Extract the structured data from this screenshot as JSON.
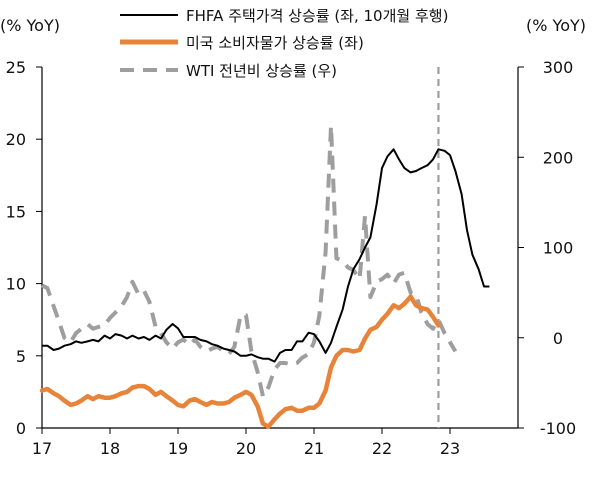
{
  "chart_data": {
    "type": "line",
    "left_axis_unit": "(% YoY)",
    "right_axis_unit": "(% YoY)",
    "x_tick_labels": [
      "17",
      "18",
      "19",
      "20",
      "21",
      "22",
      "23"
    ],
    "x_ticks": [
      2017,
      2018,
      2019,
      2020,
      2021,
      2022,
      2023
    ],
    "xlim": [
      2017,
      2024
    ],
    "y_left": {
      "ylim": [
        0,
        25
      ],
      "ticks": [
        0,
        5,
        10,
        15,
        20,
        25
      ],
      "tick_labels": [
        "0",
        "5",
        "10",
        "15",
        "20",
        "25"
      ]
    },
    "y_right": {
      "ylim": [
        -100,
        300
      ],
      "ticks": [
        -100,
        0,
        100,
        200,
        300
      ],
      "tick_labels": [
        "-100",
        "0",
        "100",
        "200",
        "300"
      ]
    },
    "vline_x": 2022.83,
    "grid": false,
    "legend_position": "top",
    "colors": {
      "fhfa": "#000000",
      "cpi": "#e8833a",
      "wti": "#9e9e9e",
      "vline": "#9e9e9e"
    },
    "series": [
      {
        "name": "FHFA 주택가격 상승률 (좌, 10개월 후행)",
        "axis": "left",
        "style": "solid",
        "points": [
          [
            2017.0,
            5.7
          ],
          [
            2017.08,
            5.7
          ],
          [
            2017.17,
            5.4
          ],
          [
            2017.25,
            5.5
          ],
          [
            2017.33,
            5.7
          ],
          [
            2017.42,
            5.8
          ],
          [
            2017.5,
            6.0
          ],
          [
            2017.58,
            5.9
          ],
          [
            2017.67,
            6.0
          ],
          [
            2017.75,
            6.1
          ],
          [
            2017.83,
            6.0
          ],
          [
            2017.92,
            6.4
          ],
          [
            2018.0,
            6.2
          ],
          [
            2018.08,
            6.5
          ],
          [
            2018.17,
            6.4
          ],
          [
            2018.25,
            6.2
          ],
          [
            2018.33,
            6.4
          ],
          [
            2018.42,
            6.2
          ],
          [
            2018.5,
            6.3
          ],
          [
            2018.58,
            6.1
          ],
          [
            2018.67,
            6.4
          ],
          [
            2018.75,
            6.2
          ],
          [
            2018.83,
            6.8
          ],
          [
            2018.92,
            7.2
          ],
          [
            2019.0,
            6.9
          ],
          [
            2019.08,
            6.3
          ],
          [
            2019.17,
            6.3
          ],
          [
            2019.25,
            6.3
          ],
          [
            2019.33,
            6.1
          ],
          [
            2019.42,
            6.0
          ],
          [
            2019.5,
            5.8
          ],
          [
            2019.58,
            5.7
          ],
          [
            2019.67,
            5.5
          ],
          [
            2019.75,
            5.4
          ],
          [
            2019.83,
            5.3
          ],
          [
            2019.92,
            5.0
          ],
          [
            2020.0,
            5.0
          ],
          [
            2020.08,
            5.1
          ],
          [
            2020.17,
            4.9
          ],
          [
            2020.25,
            4.8
          ],
          [
            2020.33,
            4.8
          ],
          [
            2020.42,
            4.6
          ],
          [
            2020.5,
            5.2
          ],
          [
            2020.58,
            5.4
          ],
          [
            2020.67,
            5.4
          ],
          [
            2020.75,
            6.0
          ],
          [
            2020.83,
            6.0
          ],
          [
            2020.92,
            6.6
          ],
          [
            2021.0,
            6.5
          ],
          [
            2021.08,
            6.0
          ],
          [
            2021.17,
            5.2
          ],
          [
            2021.25,
            5.9
          ],
          [
            2021.33,
            7.0
          ],
          [
            2021.42,
            8.2
          ],
          [
            2021.5,
            9.8
          ],
          [
            2021.58,
            11.0
          ],
          [
            2021.67,
            11.7
          ],
          [
            2021.75,
            12.5
          ],
          [
            2021.83,
            13.2
          ],
          [
            2021.92,
            15.5
          ],
          [
            2022.0,
            18.0
          ],
          [
            2022.08,
            18.8
          ],
          [
            2022.17,
            19.3
          ],
          [
            2022.25,
            18.6
          ],
          [
            2022.33,
            18.0
          ],
          [
            2022.42,
            17.7
          ],
          [
            2022.5,
            17.8
          ],
          [
            2022.58,
            18.0
          ],
          [
            2022.67,
            18.2
          ],
          [
            2022.75,
            18.6
          ],
          [
            2022.83,
            19.3
          ],
          [
            2022.92,
            19.2
          ],
          [
            2023.0,
            18.9
          ],
          [
            2023.08,
            17.8
          ],
          [
            2023.17,
            16.2
          ],
          [
            2023.25,
            13.7
          ],
          [
            2023.33,
            12.0
          ],
          [
            2023.42,
            11.0
          ],
          [
            2023.5,
            9.8
          ],
          [
            2023.58,
            9.8
          ]
        ]
      },
      {
        "name": "미국 소비자물가 상승률 (좌)",
        "axis": "left",
        "style": "solid",
        "points": [
          [
            2017.0,
            2.6
          ],
          [
            2017.08,
            2.7
          ],
          [
            2017.17,
            2.4
          ],
          [
            2017.25,
            2.2
          ],
          [
            2017.33,
            1.9
          ],
          [
            2017.42,
            1.6
          ],
          [
            2017.5,
            1.7
          ],
          [
            2017.58,
            1.9
          ],
          [
            2017.67,
            2.2
          ],
          [
            2017.75,
            2.0
          ],
          [
            2017.83,
            2.2
          ],
          [
            2017.92,
            2.1
          ],
          [
            2018.0,
            2.1
          ],
          [
            2018.08,
            2.2
          ],
          [
            2018.17,
            2.4
          ],
          [
            2018.25,
            2.5
          ],
          [
            2018.33,
            2.8
          ],
          [
            2018.42,
            2.9
          ],
          [
            2018.5,
            2.9
          ],
          [
            2018.58,
            2.7
          ],
          [
            2018.67,
            2.3
          ],
          [
            2018.75,
            2.5
          ],
          [
            2018.83,
            2.2
          ],
          [
            2018.92,
            1.9
          ],
          [
            2019.0,
            1.6
          ],
          [
            2019.08,
            1.5
          ],
          [
            2019.17,
            1.9
          ],
          [
            2019.25,
            2.0
          ],
          [
            2019.33,
            1.8
          ],
          [
            2019.42,
            1.6
          ],
          [
            2019.5,
            1.8
          ],
          [
            2019.58,
            1.7
          ],
          [
            2019.67,
            1.7
          ],
          [
            2019.75,
            1.8
          ],
          [
            2019.83,
            2.1
          ],
          [
            2019.92,
            2.3
          ],
          [
            2020.0,
            2.5
          ],
          [
            2020.08,
            2.3
          ],
          [
            2020.17,
            1.5
          ],
          [
            2020.25,
            0.3
          ],
          [
            2020.33,
            0.1
          ],
          [
            2020.42,
            0.6
          ],
          [
            2020.5,
            1.0
          ],
          [
            2020.58,
            1.3
          ],
          [
            2020.67,
            1.4
          ],
          [
            2020.75,
            1.2
          ],
          [
            2020.83,
            1.2
          ],
          [
            2020.92,
            1.4
          ],
          [
            2021.0,
            1.4
          ],
          [
            2021.08,
            1.7
          ],
          [
            2021.17,
            2.6
          ],
          [
            2021.25,
            4.2
          ],
          [
            2021.33,
            5.0
          ],
          [
            2021.42,
            5.4
          ],
          [
            2021.5,
            5.4
          ],
          [
            2021.58,
            5.3
          ],
          [
            2021.67,
            5.4
          ],
          [
            2021.75,
            6.2
          ],
          [
            2021.83,
            6.8
          ],
          [
            2021.92,
            7.0
          ],
          [
            2022.0,
            7.5
          ],
          [
            2022.08,
            7.9
          ],
          [
            2022.17,
            8.5
          ],
          [
            2022.25,
            8.3
          ],
          [
            2022.33,
            8.6
          ],
          [
            2022.42,
            9.1
          ],
          [
            2022.5,
            8.5
          ],
          [
            2022.58,
            8.3
          ],
          [
            2022.67,
            8.2
          ],
          [
            2022.75,
            7.7
          ],
          [
            2022.83,
            7.1
          ]
        ]
      },
      {
        "name": "WTI 전년비 상승률 (우)",
        "axis": "right",
        "style": "dashed",
        "points": [
          [
            2017.0,
            58
          ],
          [
            2017.08,
            55
          ],
          [
            2017.17,
            35
          ],
          [
            2017.25,
            18
          ],
          [
            2017.33,
            0
          ],
          [
            2017.42,
            -5
          ],
          [
            2017.5,
            5
          ],
          [
            2017.58,
            10
          ],
          [
            2017.67,
            15
          ],
          [
            2017.75,
            10
          ],
          [
            2017.83,
            12
          ],
          [
            2017.92,
            14
          ],
          [
            2018.0,
            22
          ],
          [
            2018.08,
            28
          ],
          [
            2018.17,
            35
          ],
          [
            2018.25,
            45
          ],
          [
            2018.33,
            62
          ],
          [
            2018.42,
            48
          ],
          [
            2018.5,
            52
          ],
          [
            2018.58,
            40
          ],
          [
            2018.67,
            12
          ],
          [
            2018.75,
            5
          ],
          [
            2018.83,
            -5
          ],
          [
            2018.92,
            -12
          ],
          [
            2019.0,
            -5
          ],
          [
            2019.08,
            -2
          ],
          [
            2019.17,
            -8
          ],
          [
            2019.25,
            -2
          ],
          [
            2019.33,
            -10
          ],
          [
            2019.42,
            -15
          ],
          [
            2019.5,
            -12
          ],
          [
            2019.58,
            -10
          ],
          [
            2019.67,
            -15
          ],
          [
            2019.75,
            -18
          ],
          [
            2019.83,
            -10
          ],
          [
            2019.92,
            25
          ],
          [
            2020.0,
            25
          ],
          [
            2020.08,
            -15
          ],
          [
            2020.17,
            -38
          ],
          [
            2020.25,
            -65
          ],
          [
            2020.33,
            -55
          ],
          [
            2020.42,
            -35
          ],
          [
            2020.5,
            -28
          ],
          [
            2020.58,
            -28
          ],
          [
            2020.67,
            -30
          ],
          [
            2020.75,
            -28
          ],
          [
            2020.83,
            -22
          ],
          [
            2020.92,
            -18
          ],
          [
            2021.0,
            -5
          ],
          [
            2021.08,
            25
          ],
          [
            2021.17,
            95
          ],
          [
            2021.25,
            235
          ],
          [
            2021.33,
            88
          ],
          [
            2021.42,
            85
          ],
          [
            2021.5,
            78
          ],
          [
            2021.58,
            75
          ],
          [
            2021.67,
            65
          ],
          [
            2021.75,
            135
          ],
          [
            2021.83,
            45
          ],
          [
            2021.92,
            62
          ],
          [
            2022.0,
            65
          ],
          [
            2022.08,
            70
          ],
          [
            2022.17,
            60
          ],
          [
            2022.25,
            70
          ],
          [
            2022.33,
            72
          ],
          [
            2022.42,
            50
          ],
          [
            2022.5,
            48
          ],
          [
            2022.58,
            28
          ],
          [
            2022.67,
            15
          ],
          [
            2022.75,
            10
          ],
          [
            2022.83,
            20
          ],
          [
            2022.92,
            5
          ],
          [
            2023.0,
            -5
          ],
          [
            2023.08,
            -15
          ]
        ]
      }
    ]
  }
}
